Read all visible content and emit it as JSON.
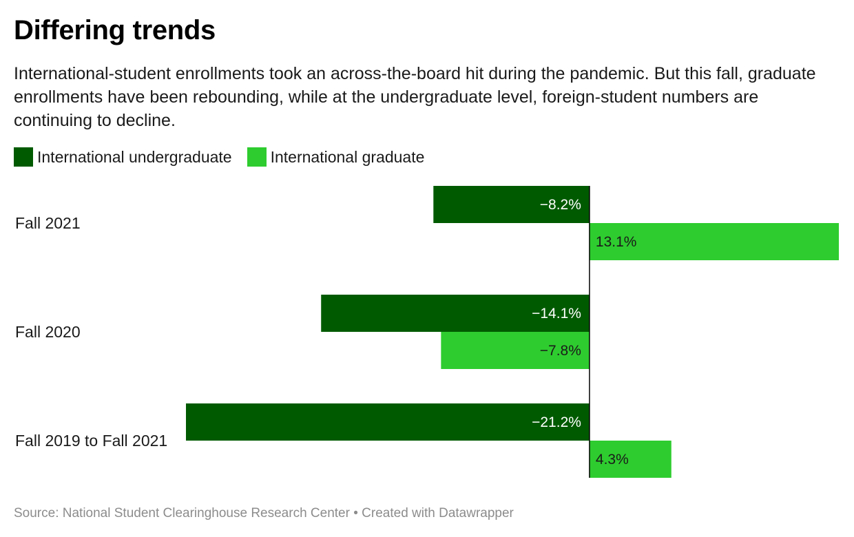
{
  "chart_data": {
    "type": "bar",
    "orientation": "horizontal",
    "title": "Differing trends",
    "subtitle": "International-student enrollments took an across-the-board hit during the pandemic. But this fall, graduate enrollments have been rebounding, while at the undergraduate level, foreign-student numbers are continuing to decline.",
    "categories": [
      "Fall 2021",
      "Fall 2020",
      "Fall 2019 to Fall 2021"
    ],
    "series": [
      {
        "name": "International undergraduate",
        "color": "#005a00",
        "values": [
          -8.2,
          -14.1,
          -21.2
        ],
        "labels": [
          "−8.2%",
          "−14.1%",
          "−21.2%"
        ]
      },
      {
        "name": "International graduate",
        "color": "#2ecc2e",
        "values": [
          13.1,
          -7.8,
          4.3
        ],
        "labels": [
          "13.1%",
          "−7.8%",
          "4.3%"
        ]
      }
    ],
    "xlim": [
      -21.2,
      13.1
    ],
    "grid": false,
    "legend_position": "top-left",
    "source": "Source: National Student Clearinghouse Research Center • Created with Datawrapper"
  }
}
